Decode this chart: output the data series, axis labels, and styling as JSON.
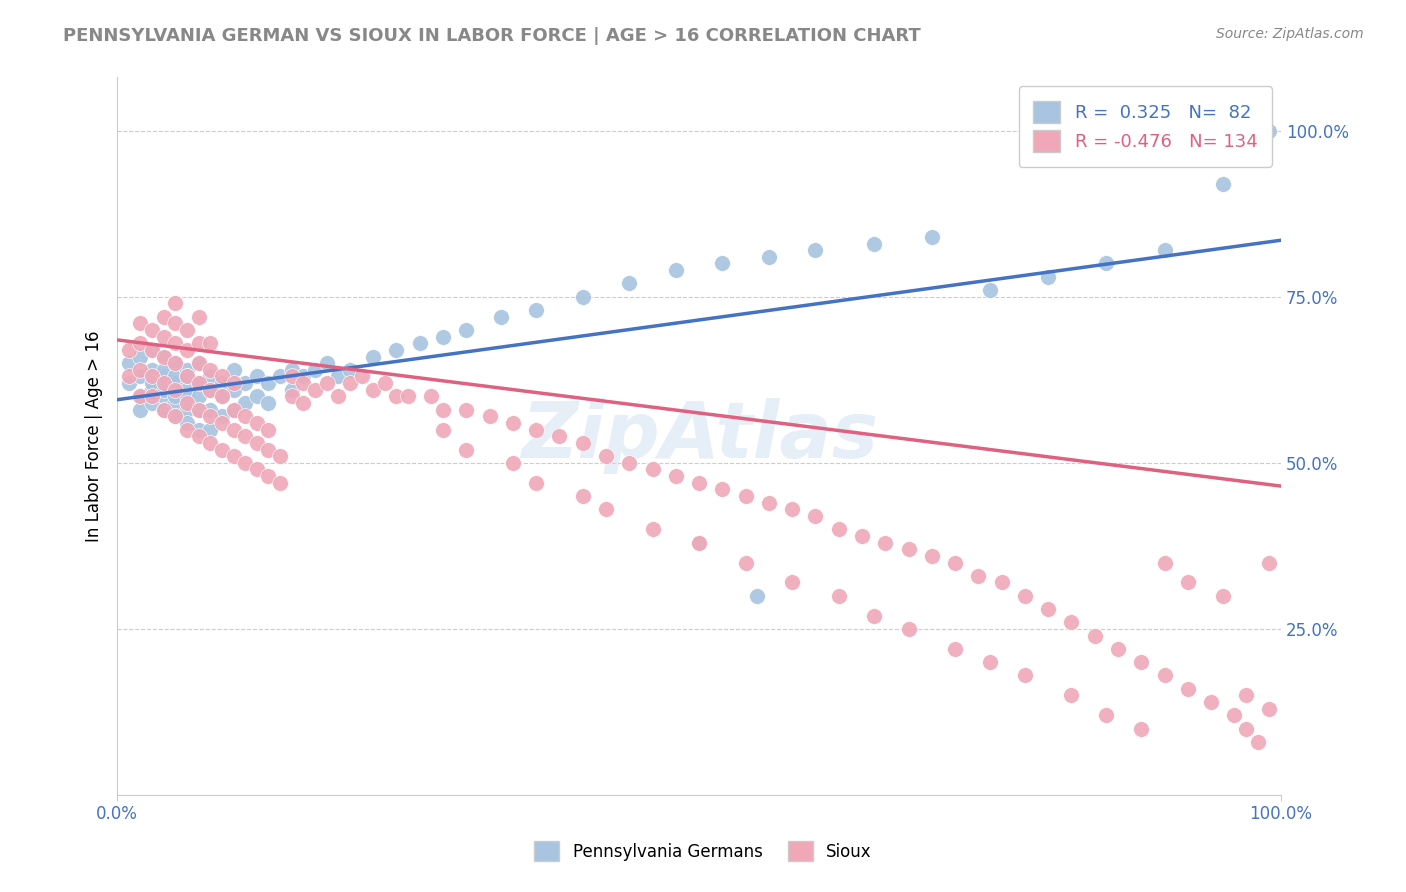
{
  "title": "PENNSYLVANIA GERMAN VS SIOUX IN LABOR FORCE | AGE > 16 CORRELATION CHART",
  "source": "Source: ZipAtlas.com",
  "xlabel": "",
  "ylabel": "In Labor Force | Age > 16",
  "xlim": [
    0.0,
    1.0
  ],
  "ylim": [
    0.0,
    1.08
  ],
  "blue_R": 0.325,
  "blue_N": 82,
  "pink_R": -0.476,
  "pink_N": 134,
  "blue_color": "#a8c4e0",
  "pink_color": "#f0a8b8",
  "blue_line_color": "#4472c4",
  "pink_line_color": "#e06080",
  "watermark": "ZipAtlas",
  "right_yticks": [
    0.25,
    0.5,
    0.75,
    1.0
  ],
  "right_yticklabels": [
    "25.0%",
    "50.0%",
    "75.0%",
    "100.0%"
  ],
  "xticklabels": [
    "0.0%",
    "100.0%"
  ],
  "blue_line_x0": 0.0,
  "blue_line_y0": 0.595,
  "blue_line_x1": 1.0,
  "blue_line_y1": 0.835,
  "pink_line_x0": 0.0,
  "pink_line_y0": 0.685,
  "pink_line_x1": 1.0,
  "pink_line_y1": 0.465,
  "blue_scatter_x": [
    0.01,
    0.01,
    0.02,
    0.02,
    0.02,
    0.02,
    0.03,
    0.03,
    0.03,
    0.03,
    0.03,
    0.04,
    0.04,
    0.04,
    0.04,
    0.04,
    0.04,
    0.05,
    0.05,
    0.05,
    0.05,
    0.05,
    0.05,
    0.06,
    0.06,
    0.06,
    0.06,
    0.06,
    0.06,
    0.07,
    0.07,
    0.07,
    0.07,
    0.07,
    0.08,
    0.08,
    0.08,
    0.08,
    0.09,
    0.09,
    0.09,
    0.1,
    0.1,
    0.1,
    0.11,
    0.11,
    0.12,
    0.12,
    0.13,
    0.13,
    0.14,
    0.15,
    0.15,
    0.16,
    0.17,
    0.18,
    0.19,
    0.2,
    0.22,
    0.24,
    0.26,
    0.28,
    0.3,
    0.33,
    0.36,
    0.4,
    0.44,
    0.48,
    0.52,
    0.56,
    0.6,
    0.65,
    0.7,
    0.75,
    0.8,
    0.85,
    0.9,
    0.95,
    0.97,
    0.99,
    0.5,
    0.55
  ],
  "blue_scatter_y": [
    0.62,
    0.65,
    0.6,
    0.63,
    0.66,
    0.58,
    0.61,
    0.64,
    0.67,
    0.59,
    0.62,
    0.6,
    0.63,
    0.66,
    0.58,
    0.61,
    0.64,
    0.59,
    0.62,
    0.65,
    0.6,
    0.63,
    0.57,
    0.61,
    0.64,
    0.6,
    0.63,
    0.58,
    0.56,
    0.62,
    0.65,
    0.6,
    0.58,
    0.55,
    0.63,
    0.61,
    0.58,
    0.55,
    0.62,
    0.6,
    0.57,
    0.64,
    0.61,
    0.58,
    0.62,
    0.59,
    0.63,
    0.6,
    0.62,
    0.59,
    0.63,
    0.64,
    0.61,
    0.63,
    0.64,
    0.65,
    0.63,
    0.64,
    0.66,
    0.67,
    0.68,
    0.69,
    0.7,
    0.72,
    0.73,
    0.75,
    0.77,
    0.79,
    0.8,
    0.81,
    0.82,
    0.83,
    0.84,
    0.76,
    0.78,
    0.8,
    0.82,
    0.92,
    0.97,
    1.0,
    0.38,
    0.3
  ],
  "pink_scatter_x": [
    0.01,
    0.01,
    0.02,
    0.02,
    0.02,
    0.02,
    0.03,
    0.03,
    0.03,
    0.03,
    0.04,
    0.04,
    0.04,
    0.04,
    0.04,
    0.05,
    0.05,
    0.05,
    0.05,
    0.05,
    0.05,
    0.06,
    0.06,
    0.06,
    0.06,
    0.06,
    0.07,
    0.07,
    0.07,
    0.07,
    0.07,
    0.07,
    0.08,
    0.08,
    0.08,
    0.08,
    0.08,
    0.09,
    0.09,
    0.09,
    0.09,
    0.1,
    0.1,
    0.1,
    0.1,
    0.11,
    0.11,
    0.11,
    0.12,
    0.12,
    0.12,
    0.13,
    0.13,
    0.13,
    0.14,
    0.14,
    0.15,
    0.15,
    0.16,
    0.16,
    0.17,
    0.18,
    0.19,
    0.2,
    0.21,
    0.22,
    0.23,
    0.24,
    0.25,
    0.27,
    0.28,
    0.3,
    0.32,
    0.34,
    0.36,
    0.38,
    0.4,
    0.42,
    0.44,
    0.46,
    0.48,
    0.5,
    0.52,
    0.54,
    0.56,
    0.58,
    0.6,
    0.62,
    0.64,
    0.66,
    0.68,
    0.7,
    0.72,
    0.74,
    0.76,
    0.78,
    0.8,
    0.82,
    0.84,
    0.86,
    0.88,
    0.9,
    0.92,
    0.94,
    0.96,
    0.97,
    0.98,
    0.99,
    0.28,
    0.3,
    0.34,
    0.36,
    0.4,
    0.42,
    0.46,
    0.5,
    0.54,
    0.58,
    0.62,
    0.65,
    0.68,
    0.72,
    0.75,
    0.78,
    0.82,
    0.85,
    0.88,
    0.9,
    0.92,
    0.95,
    0.97,
    0.99
  ],
  "pink_scatter_y": [
    0.63,
    0.67,
    0.6,
    0.64,
    0.68,
    0.71,
    0.6,
    0.63,
    0.67,
    0.7,
    0.58,
    0.62,
    0.66,
    0.69,
    0.72,
    0.57,
    0.61,
    0.65,
    0.68,
    0.71,
    0.74,
    0.55,
    0.59,
    0.63,
    0.67,
    0.7,
    0.54,
    0.58,
    0.62,
    0.65,
    0.68,
    0.72,
    0.53,
    0.57,
    0.61,
    0.64,
    0.68,
    0.52,
    0.56,
    0.6,
    0.63,
    0.51,
    0.55,
    0.58,
    0.62,
    0.5,
    0.54,
    0.57,
    0.49,
    0.53,
    0.56,
    0.48,
    0.52,
    0.55,
    0.47,
    0.51,
    0.63,
    0.6,
    0.62,
    0.59,
    0.61,
    0.62,
    0.6,
    0.62,
    0.63,
    0.61,
    0.62,
    0.6,
    0.6,
    0.6,
    0.58,
    0.58,
    0.57,
    0.56,
    0.55,
    0.54,
    0.53,
    0.51,
    0.5,
    0.49,
    0.48,
    0.47,
    0.46,
    0.45,
    0.44,
    0.43,
    0.42,
    0.4,
    0.39,
    0.38,
    0.37,
    0.36,
    0.35,
    0.33,
    0.32,
    0.3,
    0.28,
    0.26,
    0.24,
    0.22,
    0.2,
    0.18,
    0.16,
    0.14,
    0.12,
    0.1,
    0.08,
    0.35,
    0.55,
    0.52,
    0.5,
    0.47,
    0.45,
    0.43,
    0.4,
    0.38,
    0.35,
    0.32,
    0.3,
    0.27,
    0.25,
    0.22,
    0.2,
    0.18,
    0.15,
    0.12,
    0.1,
    0.35,
    0.32,
    0.3,
    0.15,
    0.13
  ]
}
